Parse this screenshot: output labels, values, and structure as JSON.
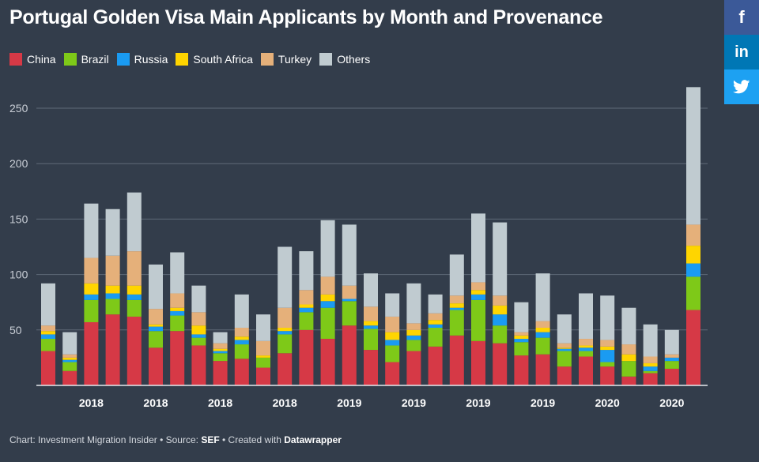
{
  "title": "Portugal Golden Visa Main Applicants by Month and Provenance",
  "share": {
    "facebook_label": "f",
    "linkedin_label": "in"
  },
  "footer": {
    "prefix": "Chart: Investment Migration Insider • Source: ",
    "source": "SEF",
    "middle": " • Created with ",
    "tool": "Datawrapper"
  },
  "chart_data": {
    "type": "bar",
    "stacked": true,
    "title": "Portugal Golden Visa Main Applicants by Month and Provenance",
    "ylim": [
      0,
      270
    ],
    "yticks": [
      50,
      100,
      150,
      200,
      250
    ],
    "grid": true,
    "legend_position": "top-left",
    "x_tick_labels": [
      {
        "index": 2,
        "label": "2018"
      },
      {
        "index": 5,
        "label": "2018"
      },
      {
        "index": 8,
        "label": "2018"
      },
      {
        "index": 11,
        "label": "2018"
      },
      {
        "index": 14,
        "label": "2019"
      },
      {
        "index": 17,
        "label": "2019"
      },
      {
        "index": 20,
        "label": "2019"
      },
      {
        "index": 23,
        "label": "2019"
      },
      {
        "index": 26,
        "label": "2020"
      },
      {
        "index": 29,
        "label": "2020"
      }
    ],
    "bar_count": 31,
    "series": [
      {
        "name": "China",
        "color": "#d63946",
        "values": [
          31,
          13,
          57,
          64,
          62,
          34,
          49,
          36,
          22,
          24,
          16,
          29,
          50,
          42,
          54,
          32,
          21,
          31,
          35,
          45,
          40,
          38,
          27,
          28,
          17,
          26,
          17,
          8,
          11,
          15,
          68
        ]
      },
      {
        "name": "Brazil",
        "color": "#7ec918",
        "values": [
          11,
          8,
          20,
          14,
          15,
          15,
          14,
          7,
          7,
          13,
          9,
          17,
          16,
          28,
          22,
          19,
          15,
          10,
          17,
          23,
          37,
          16,
          12,
          15,
          14,
          5,
          4,
          14,
          2,
          7,
          30
        ]
      },
      {
        "name": "Russia",
        "color": "#1a9bf2",
        "values": [
          4,
          2,
          5,
          5,
          5,
          4,
          4,
          3,
          2,
          4,
          0,
          3,
          4,
          6,
          2,
          3,
          5,
          4,
          3,
          2,
          5,
          10,
          3,
          5,
          2,
          3,
          11,
          0,
          4,
          3,
          12
        ]
      },
      {
        "name": "South Africa",
        "color": "#ffd500",
        "values": [
          3,
          2,
          10,
          7,
          8,
          2,
          3,
          8,
          2,
          3,
          2,
          3,
          3,
          6,
          0,
          4,
          7,
          5,
          4,
          4,
          4,
          8,
          3,
          4,
          1,
          2,
          3,
          6,
          3,
          0,
          16
        ]
      },
      {
        "name": "Turkey",
        "color": "#e5b07a",
        "values": [
          5,
          3,
          23,
          27,
          31,
          14,
          13,
          12,
          5,
          8,
          13,
          18,
          13,
          16,
          12,
          13,
          14,
          6,
          6,
          7,
          7,
          9,
          3,
          6,
          4,
          6,
          6,
          9,
          6,
          3,
          19
        ]
      },
      {
        "name": "Others",
        "color": "#c0cbd0",
        "values": [
          38,
          20,
          49,
          42,
          53,
          40,
          37,
          24,
          10,
          30,
          24,
          55,
          35,
          51,
          55,
          30,
          21,
          36,
          17,
          37,
          62,
          66,
          27,
          43,
          26,
          41,
          40,
          33,
          29,
          22,
          124
        ]
      }
    ]
  }
}
